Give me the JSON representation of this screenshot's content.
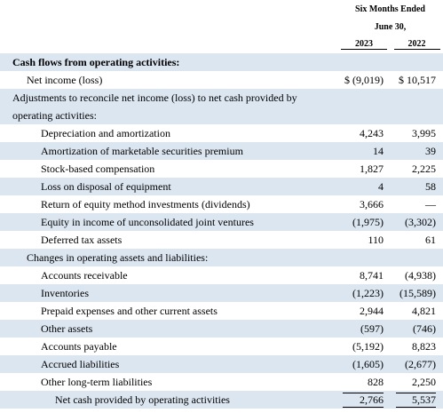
{
  "header": {
    "period": "Six Months Ended",
    "date": "June 30,",
    "years": [
      "2023",
      "2022"
    ]
  },
  "table": {
    "rows": [
      [
        "Cash flows from operating activities:"
      ],
      [
        "Net income (loss)",
        "$ (9,019)",
        "$ 10,517"
      ],
      [
        "Adjustments to reconcile net income (loss) to net cash provided by operating activities:"
      ],
      [
        "Depreciation and amortization",
        "4,243",
        "3,995"
      ],
      [
        "Amortization of marketable securities premium",
        "14",
        "39"
      ],
      [
        "Stock-based compensation",
        "1,827",
        "2,225"
      ],
      [
        "Loss on disposal of equipment",
        "4",
        "58"
      ],
      [
        "Return of equity method investments (dividends)",
        "3,666",
        "—"
      ],
      [
        "Equity in income of unconsolidated joint ventures",
        "(1,975)",
        "(3,302)"
      ],
      [
        "Deferred tax assets",
        "110",
        "61"
      ],
      [
        "Changes in operating assets and liabilities:"
      ],
      [
        "Accounts receivable",
        "8,741",
        "(4,938)"
      ],
      [
        "Inventories",
        "(1,223)",
        "(15,589)"
      ],
      [
        "Prepaid expenses and other current assets",
        "2,944",
        "4,821"
      ],
      [
        "Other assets",
        "(597)",
        "(746)"
      ],
      [
        "Accounts payable",
        "(5,192)",
        "8,823"
      ],
      [
        "Accrued liabilities",
        "(1,605)",
        "(2,677)"
      ],
      [
        "Other long-term liabilities",
        "828",
        "2,250"
      ],
      [
        "Net cash provided by operating activities",
        "2,766",
        "5,537"
      ]
    ]
  }
}
